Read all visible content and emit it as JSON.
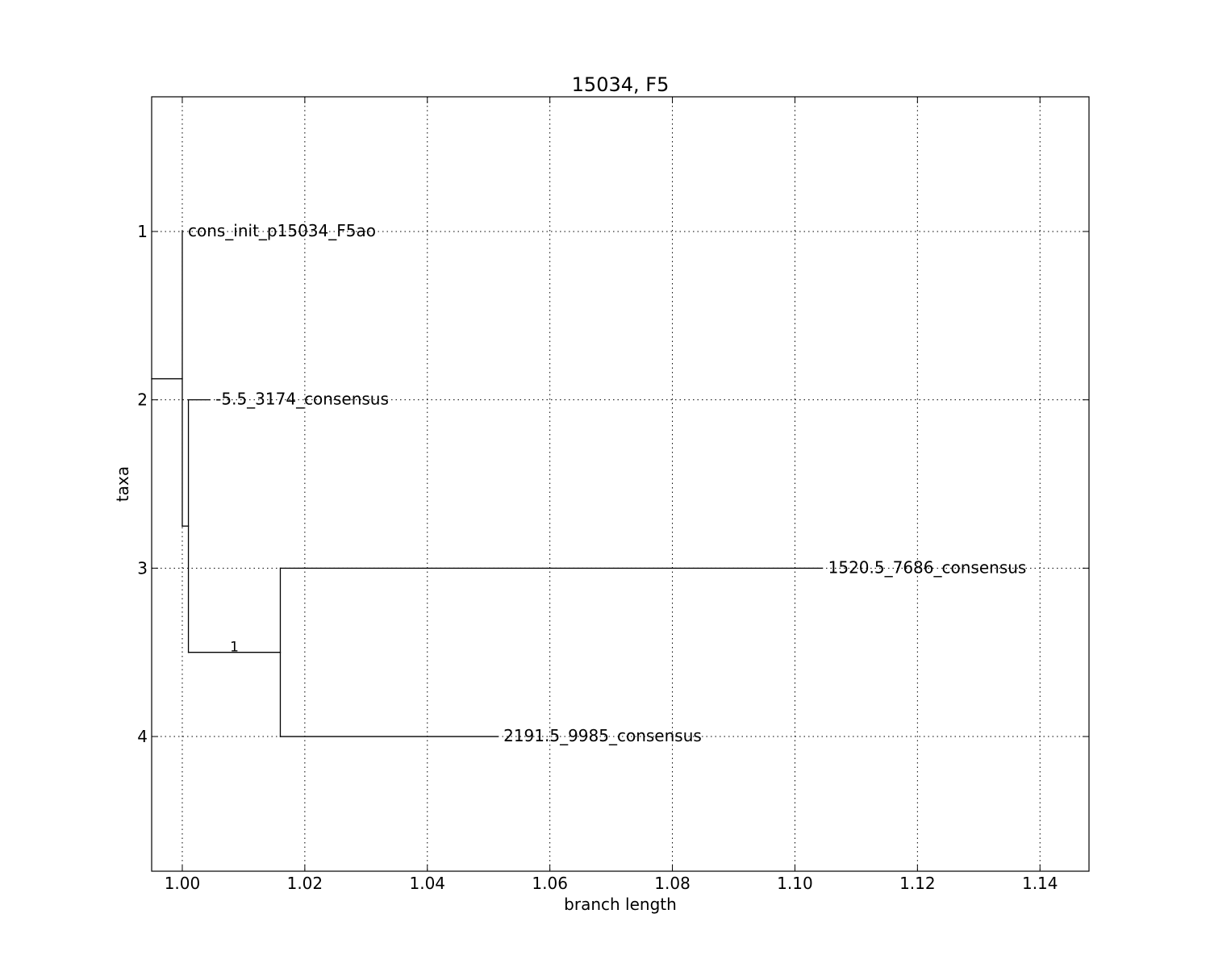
{
  "chart_data": {
    "type": "tree",
    "title": "15034, F5",
    "xlabel": "branch length",
    "ylabel": "taxa",
    "xlim": [
      0.995,
      1.148
    ],
    "ylim": [
      4.8,
      0.2
    ],
    "grid": true,
    "x_ticks": [
      {
        "value": 1.0,
        "label": "1.00"
      },
      {
        "value": 1.02,
        "label": "1.02"
      },
      {
        "value": 1.04,
        "label": "1.04"
      },
      {
        "value": 1.06,
        "label": "1.06"
      },
      {
        "value": 1.08,
        "label": "1.08"
      },
      {
        "value": 1.1,
        "label": "1.10"
      },
      {
        "value": 1.12,
        "label": "1.12"
      },
      {
        "value": 1.14,
        "label": "1.14"
      }
    ],
    "y_ticks": [
      {
        "value": 1,
        "label": "1"
      },
      {
        "value": 2,
        "label": "2"
      },
      {
        "value": 3,
        "label": "3"
      },
      {
        "value": 4,
        "label": "4"
      }
    ],
    "leaves": [
      {
        "label": "cons_init_p15034_F5ao",
        "y": 1,
        "x": 1.0
      },
      {
        "label": "-5.5_3174_consensus",
        "y": 2,
        "x": 1.0045
      },
      {
        "label": "1520.5_7686_consensus",
        "y": 3,
        "x": 1.1045
      },
      {
        "label": "2191.5_9985_consensus",
        "y": 4,
        "x": 1.0515
      }
    ],
    "branches": [
      {
        "x1": 0.995,
        "y1": 1.875,
        "x2": 1.0,
        "y2": 1.875
      },
      {
        "x1": 1.0,
        "y1": 1.0,
        "x2": 1.0,
        "y2": 2.75
      },
      {
        "x1": 1.0,
        "y1": 2.75,
        "x2": 1.001,
        "y2": 2.75
      },
      {
        "x1": 1.001,
        "y1": 2.0,
        "x2": 1.001,
        "y2": 3.5
      },
      {
        "x1": 1.001,
        "y1": 2.0,
        "x2": 1.0045,
        "y2": 2.0
      },
      {
        "x1": 1.001,
        "y1": 3.5,
        "x2": 1.016,
        "y2": 3.5
      },
      {
        "x1": 1.016,
        "y1": 3.0,
        "x2": 1.016,
        "y2": 4.0
      },
      {
        "x1": 1.016,
        "y1": 3.0,
        "x2": 1.1045,
        "y2": 3.0
      },
      {
        "x1": 1.016,
        "y1": 4.0,
        "x2": 1.0515,
        "y2": 4.0
      }
    ],
    "annotations": [
      {
        "text": "1",
        "x": 1.0085,
        "y": 3.5
      }
    ]
  }
}
